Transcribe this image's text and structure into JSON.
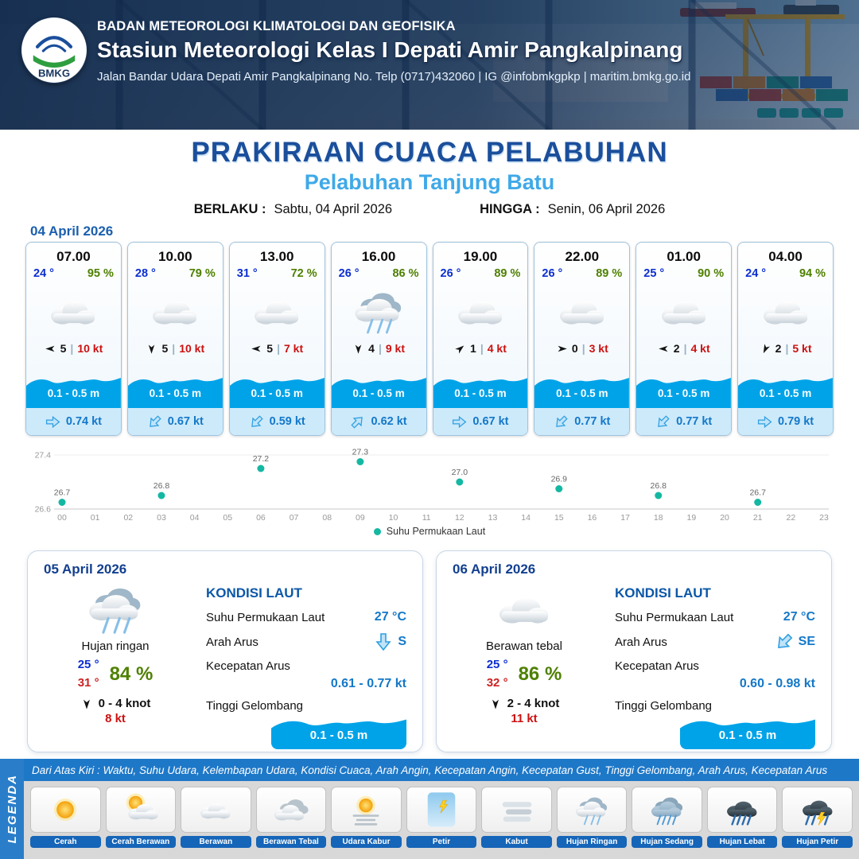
{
  "colors": {
    "header_navy": "#14325c",
    "title_blue": "#1b4f9c",
    "subtitle_blue": "#3fa9e8",
    "temp_blue": "#0c2ed1",
    "humidity_green": "#4e8000",
    "gust_red": "#cc1111",
    "wave_blue": "#00a3e8",
    "current_blue": "#1478c8",
    "sst_dot_teal": "#14b8a2",
    "legend_blue": "#1e78c8"
  },
  "header": {
    "logo_text": "BMKG",
    "org": "BADAN METEOROLOGI KLIMATOLOGI DAN GEOFISIKA",
    "station": "Stasiun Meteorologi Kelas I Depati Amir Pangkalpinang",
    "address": "Jalan Bandar Udara Depati Amir Pangkalpinang No. Telp (0717)432060 | IG @infobmkgpkp | maritim.bmkg.go.id"
  },
  "title": {
    "main": "PRAKIRAAN CUACA PELABUHAN",
    "sub": "Pelabuhan Tanjung Batu"
  },
  "period": {
    "berlaku_label": "BERLAKU :",
    "berlaku": "Sabtu, 04 April 2026",
    "hingga_label": "HINGGA :",
    "hingga": "Senin, 06 April 2026"
  },
  "forecast_date": "04 April 2026",
  "strings": {
    "pipe": "|"
  },
  "cards": [
    {
      "time": "07.00",
      "temp": "24 °",
      "rh": "95 %",
      "icon": "berawan",
      "wind_rot": 180,
      "wind": "5",
      "gust": "10 kt",
      "wave": "0.1 - 0.5 m",
      "cur_rot": 0,
      "current": "0.74 kt"
    },
    {
      "time": "10.00",
      "temp": "28 °",
      "rh": "79 %",
      "icon": "berawan",
      "wind_rot": 90,
      "wind": "5",
      "gust": "10 kt",
      "wave": "0.1 - 0.5 m",
      "cur_rot": 135,
      "current": "0.67 kt"
    },
    {
      "time": "13.00",
      "temp": "31 °",
      "rh": "72 %",
      "icon": "berawan",
      "wind_rot": 180,
      "wind": "5",
      "gust": "7 kt",
      "wave": "0.1 - 0.5 m",
      "cur_rot": 135,
      "current": "0.59 kt"
    },
    {
      "time": "16.00",
      "temp": "26 °",
      "rh": "86 %",
      "icon": "hujan-ringan",
      "wind_rot": 90,
      "wind": "4",
      "gust": "9 kt",
      "wave": "0.1 - 0.5 m",
      "cur_rot": -45,
      "current": "0.62 kt"
    },
    {
      "time": "19.00",
      "temp": "26 °",
      "rh": "89 %",
      "icon": "berawan",
      "wind_rot": -40,
      "wind": "1",
      "gust": "4 kt",
      "wave": "0.1 - 0.5 m",
      "cur_rot": 0,
      "current": "0.67 kt"
    },
    {
      "time": "22.00",
      "temp": "26 °",
      "rh": "89 %",
      "icon": "berawan",
      "wind_rot": 0,
      "wind": "0",
      "gust": "3 kt",
      "wave": "0.1 - 0.5 m",
      "cur_rot": 135,
      "current": "0.77 kt"
    },
    {
      "time": "01.00",
      "temp": "25 °",
      "rh": "90 %",
      "icon": "berawan",
      "wind_rot": 180,
      "wind": "2",
      "gust": "4 kt",
      "wave": "0.1 - 0.5 m",
      "cur_rot": 135,
      "current": "0.77 kt"
    },
    {
      "time": "04.00",
      "temp": "24 °",
      "rh": "94 %",
      "icon": "berawan",
      "wind_rot": 115,
      "wind": "2",
      "gust": "5 kt",
      "wave": "0.1 - 0.5 m",
      "cur_rot": 0,
      "current": "0.79 kt"
    }
  ],
  "chart_data": {
    "type": "scatter",
    "legend": "Suhu Permukaan Laut",
    "unit": "°C",
    "x": [
      0,
      3,
      6,
      9,
      12,
      15,
      18,
      21
    ],
    "values": [
      26.7,
      26.8,
      27.2,
      27.3,
      27.0,
      26.9,
      26.8,
      26.7
    ],
    "xticks": [
      "00",
      "01",
      "02",
      "03",
      "04",
      "05",
      "06",
      "07",
      "08",
      "09",
      "10",
      "11",
      "12",
      "13",
      "14",
      "15",
      "16",
      "17",
      "18",
      "19",
      "20",
      "21",
      "22",
      "23"
    ],
    "ylim": [
      26.6,
      27.4
    ],
    "yticks": [
      27.4,
      26.6
    ],
    "grid": true,
    "legend_position": "bottom",
    "dot_color": "#14b8a2"
  },
  "sea_labels": {
    "title": "KONDISI LAUT",
    "sst": "Suhu Permukaan Laut",
    "arah": "Arah Arus",
    "kecepatan": "Kecepatan Arus",
    "gelombang": "Tinggi Gelombang"
  },
  "daily": [
    {
      "date": "05 April 2026",
      "icon": "hujan-ringan",
      "desc": "Hujan ringan",
      "tmin": "25 °",
      "tmax": "31 °",
      "rh": "84 %",
      "wind_rot": 90,
      "wind": "0 - 4 knot",
      "gust": "8 kt",
      "sst": "27 °C",
      "arus_rot": 90,
      "arus_dir": "S",
      "kecepatan": "0.61 - 0.77 kt",
      "gelombang": "0.1 - 0.5 m"
    },
    {
      "date": "06 April 2026",
      "icon": "berawan",
      "desc": "Berawan tebal",
      "tmin": "25 °",
      "tmax": "32 °",
      "rh": "86 %",
      "wind_rot": 90,
      "wind": "2 - 4 knot",
      "gust": "11 kt",
      "sst": "27 °C",
      "arus_rot": 135,
      "arus_dir": "SE",
      "kecepatan": "0.60 - 0.98 kt",
      "gelombang": "0.1 - 0.5 m"
    }
  ],
  "legend": {
    "vertical_label": "LEGENDA",
    "note": "Dari Atas Kiri : Waktu, Suhu Udara, Kelembapan Udara, Kondisi Cuaca, Arah Angin, Kecepatan Angin, Kecepatan Gust, Tinggi Gelombang, Arah Arus, Kecepatan Arus",
    "items": [
      {
        "label": "Cerah",
        "icon": "cerah"
      },
      {
        "label": "Cerah Berawan",
        "icon": "cerah-berawan"
      },
      {
        "label": "Berawan",
        "icon": "berawan"
      },
      {
        "label": "Berawan Tebal",
        "icon": "berawan-tebal"
      },
      {
        "label": "Udara Kabur",
        "icon": "udara-kabur"
      },
      {
        "label": "Petir",
        "icon": "petir"
      },
      {
        "label": "Kabut",
        "icon": "kabut"
      },
      {
        "label": "Hujan Ringan",
        "icon": "hujan-ringan"
      },
      {
        "label": "Hujan Sedang",
        "icon": "hujan-sedang"
      },
      {
        "label": "Hujan Lebat",
        "icon": "hujan-lebat"
      },
      {
        "label": "Hujan Petir",
        "icon": "hujan-petir"
      }
    ]
  }
}
